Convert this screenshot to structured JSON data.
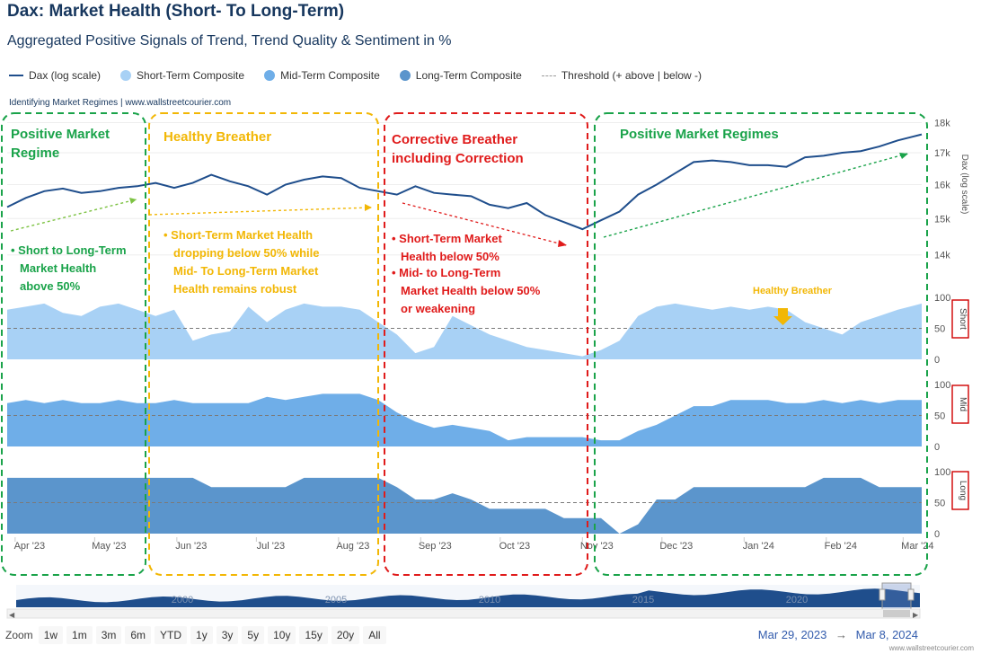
{
  "header": {
    "title": "Dax: Market Health (Short- To Long-Term)",
    "subtitle": "Aggregated Positive Signals of Trend, Trend Quality & Sentiment in %",
    "credit": "Identifying Market Regimes | www.wallstreetcourier.com",
    "footer_credit": "www.wallstreetcourier.com"
  },
  "legend": [
    {
      "label": "Dax (log scale)",
      "kind": "line",
      "color": "#1f4e8c"
    },
    {
      "label": "Short-Term Composite",
      "kind": "dot",
      "color": "#a8d1f5"
    },
    {
      "label": "Mid-Term Composite",
      "kind": "dot",
      "color": "#6faee8"
    },
    {
      "label": "Long-Term Composite",
      "kind": "dot",
      "color": "#5b95cc"
    },
    {
      "label": "Threshold (+ above | below -)",
      "kind": "dash",
      "color": "#999999"
    }
  ],
  "annotations": {
    "box1": {
      "title": "Positive Market Regime",
      "bullets": [
        "Short to Long-Term Market Health above 50%"
      ],
      "color": "#1aa34a"
    },
    "box2": {
      "title": "Healthy Breather",
      "bullets": [
        "Short-Term Market Health dropping below 50% while Mid- To Long-Term Market Health remains robust"
      ],
      "color": "#f2b705"
    },
    "box3": {
      "title": "Corrective Breather including Correction",
      "bullets": [
        "Short-Term Market Health below 50%",
        "Mid- to Long-Term Market Health below 50% or weakening"
      ],
      "color": "#e01b1b"
    },
    "box4": {
      "title": "Positive Market Regimes",
      "bullets": [],
      "color": "#1aa34a"
    },
    "breather_note": "Healthy Breather"
  },
  "chart_data": {
    "type": "line",
    "x_range": [
      "2023-03-29",
      "2024-03-08"
    ],
    "x_ticks": [
      "Apr '23",
      "May '23",
      "Jun '23",
      "Jul '23",
      "Aug '23",
      "Sep '23",
      "Oct '23",
      "Nov '23",
      "Dec '23",
      "Jan '24",
      "Feb '24",
      "Mar '24"
    ],
    "dax": {
      "name": "Dax (log scale)",
      "axis_label": "Dax (log scale)",
      "scale": "log",
      "ylim": [
        13500,
        18200
      ],
      "ticks": [
        "14k",
        "15k",
        "16k",
        "17k",
        "18k"
      ],
      "tick_values": [
        14000,
        15000,
        16000,
        17000,
        18000
      ],
      "x": [
        "2023-03-29",
        "2023-04-05",
        "2023-04-12",
        "2023-04-19",
        "2023-04-26",
        "2023-05-03",
        "2023-05-10",
        "2023-05-17",
        "2023-05-24",
        "2023-05-31",
        "2023-06-07",
        "2023-06-14",
        "2023-06-21",
        "2023-06-28",
        "2023-07-05",
        "2023-07-12",
        "2023-07-19",
        "2023-07-26",
        "2023-08-02",
        "2023-08-09",
        "2023-08-16",
        "2023-08-23",
        "2023-08-30",
        "2023-09-06",
        "2023-09-13",
        "2023-09-20",
        "2023-09-27",
        "2023-10-04",
        "2023-10-11",
        "2023-10-18",
        "2023-10-25",
        "2023-11-01",
        "2023-11-08",
        "2023-11-15",
        "2023-11-22",
        "2023-11-29",
        "2023-12-06",
        "2023-12-13",
        "2023-12-20",
        "2023-12-27",
        "2024-01-03",
        "2024-01-10",
        "2024-01-17",
        "2024-01-24",
        "2024-01-31",
        "2024-02-07",
        "2024-02-14",
        "2024-02-21",
        "2024-02-28",
        "2024-03-08"
      ],
      "values": [
        15330,
        15600,
        15800,
        15880,
        15750,
        15800,
        15900,
        15950,
        16050,
        15900,
        16050,
        16300,
        16100,
        15950,
        15700,
        16000,
        16150,
        16250,
        16200,
        15900,
        15800,
        15700,
        15950,
        15750,
        15700,
        15650,
        15400,
        15300,
        15450,
        15100,
        14900,
        14700,
        14950,
        15200,
        15700,
        16000,
        16350,
        16700,
        16750,
        16700,
        16600,
        16600,
        16550,
        16850,
        16900,
        17000,
        17050,
        17200,
        17400,
        17600
      ]
    },
    "short_term": {
      "name": "Short",
      "ticks": [
        "0",
        "50",
        "100"
      ],
      "ylim": [
        0,
        100
      ],
      "threshold": 50,
      "values": [
        80,
        85,
        90,
        75,
        70,
        85,
        90,
        80,
        70,
        80,
        30,
        40,
        45,
        85,
        60,
        80,
        90,
        85,
        85,
        80,
        60,
        40,
        10,
        20,
        70,
        55,
        40,
        30,
        20,
        15,
        10,
        5,
        15,
        30,
        70,
        85,
        90,
        85,
        80,
        85,
        80,
        85,
        80,
        60,
        50,
        40,
        60,
        70,
        80,
        90
      ]
    },
    "mid_term": {
      "name": "Mid",
      "ticks": [
        "0",
        "50",
        "100"
      ],
      "ylim": [
        0,
        100
      ],
      "threshold": 50,
      "values": [
        70,
        75,
        70,
        75,
        70,
        70,
        75,
        70,
        70,
        75,
        70,
        70,
        70,
        70,
        80,
        75,
        80,
        85,
        85,
        85,
        75,
        55,
        40,
        30,
        35,
        30,
        25,
        10,
        15,
        15,
        15,
        15,
        10,
        10,
        25,
        35,
        50,
        65,
        65,
        75,
        75,
        75,
        70,
        70,
        75,
        70,
        75,
        70,
        75,
        75
      ]
    },
    "long_term": {
      "name": "Long",
      "ticks": [
        "0",
        "50",
        "100"
      ],
      "ylim": [
        0,
        100
      ],
      "threshold": 50,
      "values": [
        90,
        90,
        90,
        90,
        90,
        90,
        90,
        90,
        90,
        90,
        90,
        75,
        75,
        75,
        75,
        75,
        90,
        90,
        90,
        90,
        90,
        75,
        55,
        55,
        65,
        55,
        40,
        40,
        40,
        40,
        25,
        25,
        25,
        0,
        15,
        55,
        55,
        75,
        75,
        75,
        75,
        75,
        75,
        75,
        90,
        90,
        90,
        75,
        75,
        75
      ]
    },
    "navigator_labels": [
      "2000",
      "2005",
      "2010",
      "2015",
      "2020"
    ]
  },
  "zoom": {
    "label": "Zoom",
    "buttons": [
      "1w",
      "1m",
      "3m",
      "6m",
      "YTD",
      "1y",
      "3y",
      "5y",
      "10y",
      "15y",
      "20y",
      "All"
    ]
  },
  "range": {
    "from": "Mar 29, 2023",
    "arrow": "→",
    "to": "Mar 8, 2024"
  }
}
